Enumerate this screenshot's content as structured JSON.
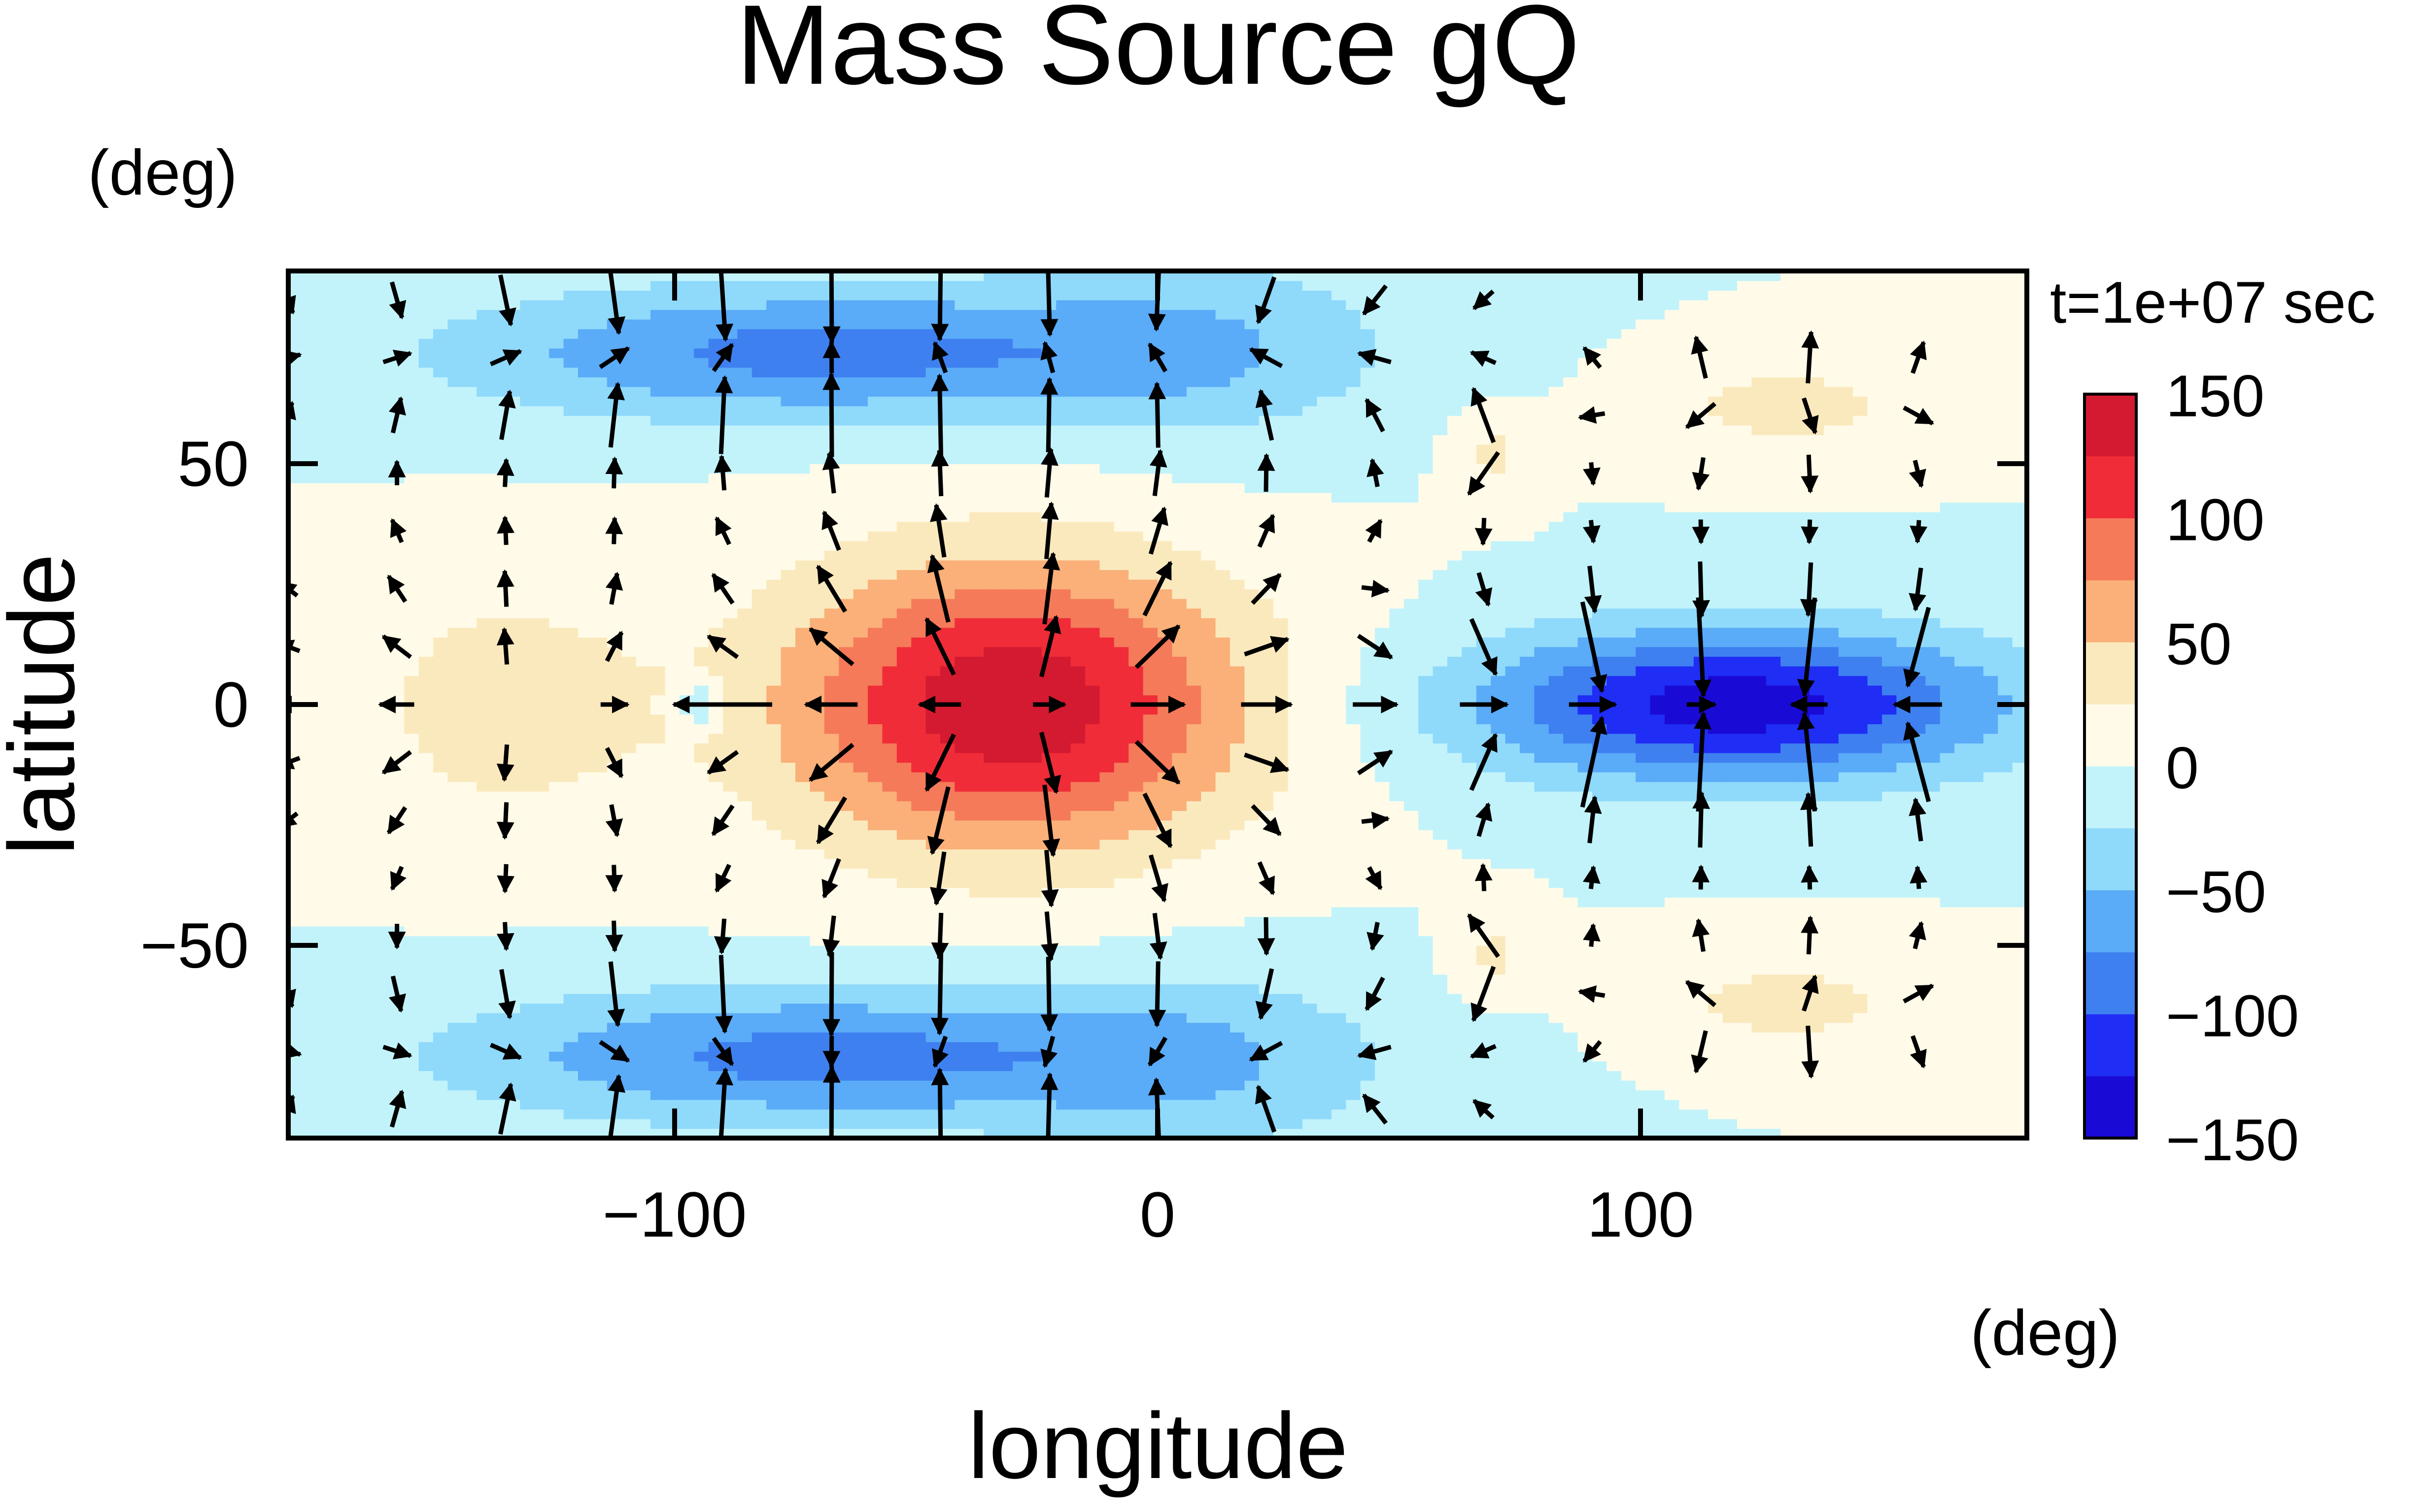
{
  "chart_data": {
    "type": "heatmap",
    "title": "Mass Source gQ",
    "xlabel": "longitude",
    "ylabel": "latitude",
    "x_unit": "(deg)",
    "y_unit": "(deg)",
    "time_label": "t=1e+07 sec",
    "xlim": [
      -180,
      180
    ],
    "ylim": [
      -90,
      90
    ],
    "x_ticks": [
      -100,
      0,
      100
    ],
    "y_ticks": [
      50,
      0,
      -50
    ],
    "x_tick_labels": [
      "−100",
      "0",
      "100"
    ],
    "y_tick_labels": [
      "50",
      "0",
      "−50"
    ],
    "colorbar": {
      "levels": [
        -150,
        -125,
        -100,
        -75,
        -50,
        -25,
        0,
        25,
        50,
        75,
        100,
        125,
        150
      ],
      "labels": [
        {
          "value": 150,
          "text": "150"
        },
        {
          "value": 100,
          "text": "100"
        },
        {
          "value": 50,
          "text": "50"
        },
        {
          "value": 0,
          "text": "0"
        },
        {
          "value": -50,
          "text": "−50"
        },
        {
          "value": -100,
          "text": "−100"
        },
        {
          "value": -150,
          "text": "−150"
        }
      ],
      "colors": [
        "#1a0ad6",
        "#1f2df5",
        "#3e80f0",
        "#5aabf8",
        "#8fd9fb",
        "#c2f3fb",
        "#fffbe8",
        "#fbe9be",
        "#fab078",
        "#f57a5a",
        "#f02c38",
        "#d41a30"
      ]
    },
    "field": {
      "background": 0,
      "features": [
        {
          "lon": -30,
          "lat": 0,
          "amplitude": 145,
          "lon_width": 48,
          "lat_width": 30
        },
        {
          "lon": -135,
          "lat": 0,
          "amplitude": 40,
          "lon_width": 30,
          "lat_width": 25
        },
        {
          "lon": -95,
          "lat": 0,
          "amplitude": -45,
          "lon_width": 5,
          "lat_width": 5
        },
        {
          "lon": 120,
          "lat": 0,
          "amplitude": -140,
          "lon_width": 55,
          "lat_width": 16
        },
        {
          "lon": -70,
          "lat": 73,
          "amplitude": -85,
          "lon_width": 75,
          "lat_width": 14
        },
        {
          "lon": -70,
          "lat": -73,
          "amplitude": -85,
          "lon_width": 75,
          "lat_width": 14
        },
        {
          "lon": 130,
          "lat": 62,
          "amplitude": 35,
          "lon_width": 28,
          "lat_width": 10
        },
        {
          "lon": 130,
          "lat": -62,
          "amplitude": 35,
          "lon_width": 28,
          "lat_width": 10
        },
        {
          "lon": 70,
          "lat": 52,
          "amplitude": 30,
          "lon_width": 9,
          "lat_width": 9
        },
        {
          "lon": 70,
          "lat": -52,
          "amplitude": 30,
          "lon_width": 9,
          "lat_width": 9
        },
        {
          "lon": 10,
          "lat": 75,
          "amplitude": -35,
          "lon_width": 40,
          "lat_width": 22
        },
        {
          "lon": 10,
          "lat": -75,
          "amplitude": -35,
          "lon_width": 40,
          "lat_width": 22
        }
      ]
    },
    "vectors": {
      "lon_step": 22.5,
      "lat_step": 12,
      "lon_start": -180,
      "lat_start": -84,
      "description_unit": "deg"
    }
  }
}
